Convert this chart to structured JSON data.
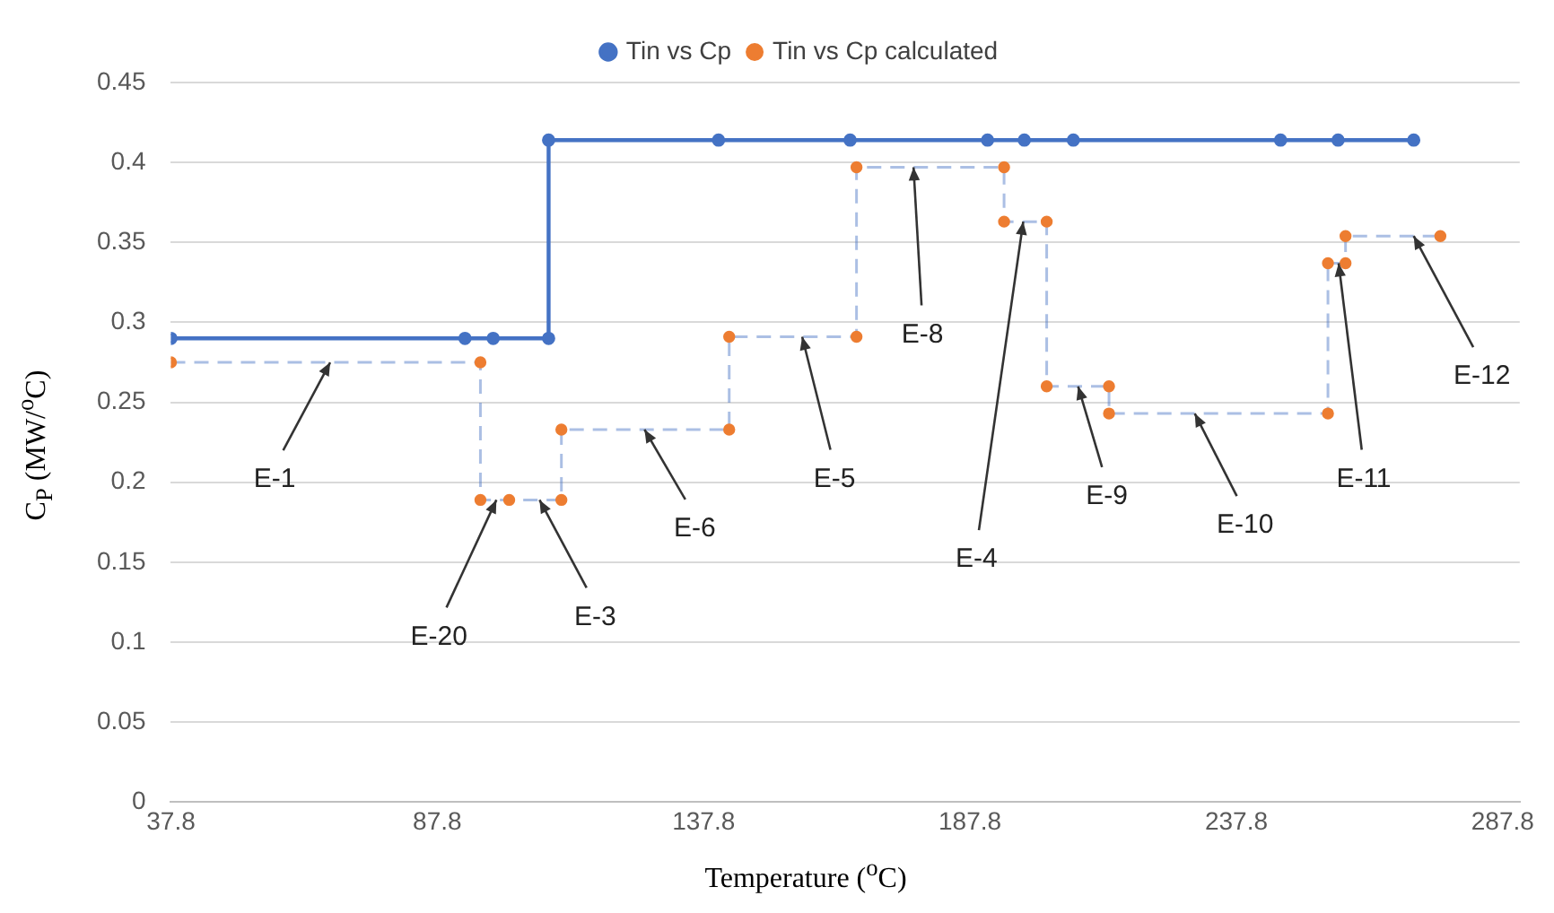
{
  "chart_data": {
    "type": "line",
    "xlabel": "Temperature ($^{o}$C)",
    "ylabel": "C$_{P}$ (MW/$^{o}$C)",
    "xlim": [
      37.8,
      291
    ],
    "xticks": [
      37.8,
      87.8,
      137.8,
      187.8,
      237.8,
      287.8
    ],
    "ylim": [
      0,
      0.45
    ],
    "yticks": [
      0,
      0.05,
      0.1,
      0.15,
      0.2,
      0.25,
      0.3,
      0.35,
      0.4,
      0.45
    ],
    "grid": "y",
    "legend": "top",
    "marker": "circle",
    "series": [
      {
        "name": "Tin vs Cp",
        "color": "#4472c4",
        "line_style": "solid",
        "x": [
          37.8,
          93.0,
          98.3,
          108.7,
          108.7,
          140.6,
          165.3,
          191.1,
          198.0,
          207.2,
          246.1,
          256.9,
          271.1
        ],
        "values": [
          0.29,
          0.29,
          0.29,
          0.29,
          0.414,
          0.414,
          0.414,
          0.414,
          0.414,
          0.414,
          0.414,
          0.414,
          0.414
        ]
      },
      {
        "name": "Tin vs Cp calculated",
        "color": "#ed7d31",
        "line_style": "dashed",
        "x": [
          37.8,
          95.9,
          95.9,
          101.3,
          111.1,
          111.1,
          142.6,
          142.6,
          166.5,
          166.5,
          194.2,
          194.2,
          202.2,
          202.2,
          213.9,
          213.9,
          255.0,
          255.0,
          258.3,
          258.3,
          276.1
        ],
        "values": [
          0.275,
          0.275,
          0.189,
          0.189,
          0.189,
          0.233,
          0.233,
          0.291,
          0.291,
          0.397,
          0.397,
          0.363,
          0.363,
          0.26,
          0.26,
          0.243,
          0.243,
          0.337,
          0.337,
          0.354,
          0.354
        ]
      }
    ],
    "annotations": [
      {
        "text": "E-1",
        "x": 67.7,
        "y": 0.275
      },
      {
        "text": "E-20",
        "x": 98.9,
        "y": 0.189
      },
      {
        "text": "E-3",
        "x": 107.0,
        "y": 0.189
      },
      {
        "text": "E-6",
        "x": 126.7,
        "y": 0.233
      },
      {
        "text": "E-5",
        "x": 156.3,
        "y": 0.291
      },
      {
        "text": "E-8",
        "x": 177.2,
        "y": 0.397
      },
      {
        "text": "E-4",
        "x": 197.8,
        "y": 0.363
      },
      {
        "text": "E-9",
        "x": 208.1,
        "y": 0.26
      },
      {
        "text": "E-10",
        "x": 230.0,
        "y": 0.243
      },
      {
        "text": "E-11",
        "x": 257.0,
        "y": 0.337
      },
      {
        "text": "E-12",
        "x": 271.1,
        "y": 0.354
      }
    ]
  }
}
